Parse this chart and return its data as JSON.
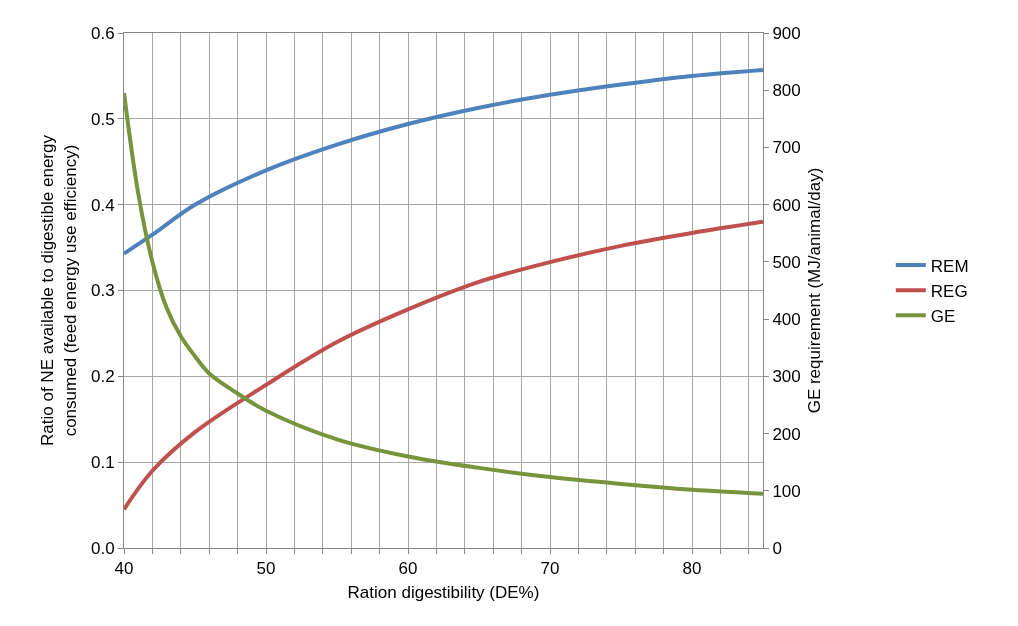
{
  "chart_data": {
    "type": "line",
    "xlabel": "Ration digestibility (DE%)",
    "ylabel": "Ratio of NE available to digestible energy\nconsumed (feed energy use efficiency)",
    "y2label": "GE requirement (MJ/animal/day)",
    "xlim": [
      40,
      85
    ],
    "xticks": [
      40,
      {
        "value": 42,
        "label": null
      },
      {
        "value": 44,
        "label": null
      },
      {
        "value": 46,
        "label": null
      },
      {
        "value": 48,
        "label": null
      },
      50,
      {
        "value": 52,
        "label": null
      },
      {
        "value": 54,
        "label": null
      },
      {
        "value": 56,
        "label": null
      },
      {
        "value": 58,
        "label": null
      },
      60,
      {
        "value": 62,
        "label": null
      },
      {
        "value": 64,
        "label": null
      },
      {
        "value": 66,
        "label": null
      },
      {
        "value": 68,
        "label": null
      },
      70,
      {
        "value": 72,
        "label": null
      },
      {
        "value": 74,
        "label": null
      },
      {
        "value": 76,
        "label": null
      },
      {
        "value": 78,
        "label": null
      },
      80,
      {
        "value": 82,
        "label": null
      },
      {
        "value": 84,
        "label": null
      }
    ],
    "ylim": [
      0,
      0.6
    ],
    "yticks": [
      {
        "value": 0,
        "label": "0.0"
      },
      0.1,
      0.2,
      0.3,
      0.4,
      0.5,
      0.6
    ],
    "y2lim": [
      0,
      900
    ],
    "y2ticks": [
      0,
      100,
      200,
      300,
      400,
      500,
      600,
      700,
      800,
      900
    ],
    "grid": true,
    "legend": "right",
    "marker": "none",
    "line_style": "solid",
    "series": [
      {
        "name": "REM",
        "color": "#4f81bd",
        "x": [
          40,
          42,
          45,
          50,
          55,
          60,
          65,
          70,
          75,
          80,
          85
        ],
        "values": [
          0.343,
          0.365,
          0.4,
          0.44,
          0.47,
          0.494,
          0.513,
          0.528,
          0.54,
          0.55,
          0.557
        ]
      },
      {
        "name": "REG",
        "color": "#c0504d",
        "x": [
          40,
          42,
          45,
          50,
          55,
          60,
          65,
          70,
          75,
          80,
          85
        ],
        "values": [
          0.045,
          0.09,
          0.135,
          0.19,
          0.24,
          0.278,
          0.31,
          0.333,
          0.352,
          0.367,
          0.38
        ]
      },
      {
        "name": "GE",
        "color": "#77933c",
        "axis": "y2",
        "x": [
          40,
          41,
          42,
          43,
          44,
          45,
          46,
          48,
          50,
          55,
          60,
          65,
          70,
          75,
          80,
          85
        ],
        "values": [
          795,
          620,
          500,
          420,
          370,
          335,
          305,
          270,
          240,
          190,
          160,
          140,
          124,
          112,
          102,
          95
        ]
      }
    ]
  }
}
